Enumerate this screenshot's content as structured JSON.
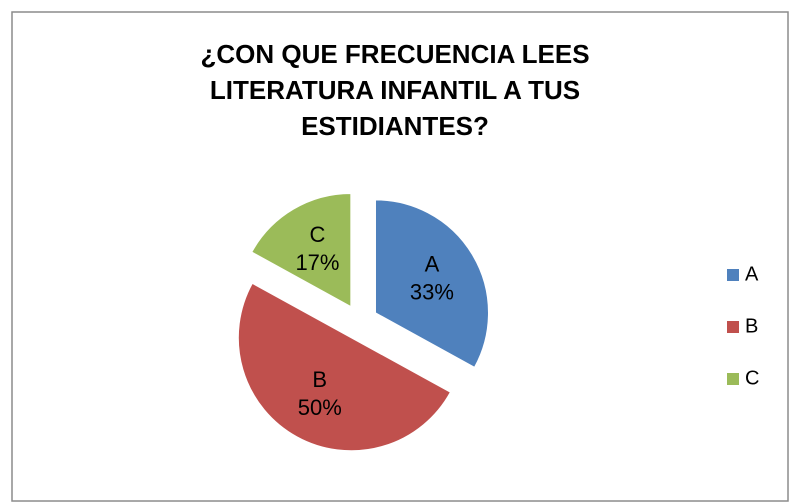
{
  "chart_data": {
    "type": "pie",
    "title": "¿CON QUE FRECUENCIA LEES LITERATURA INFANTIL A TUS ESTIDIANTES?",
    "categories": [
      "A",
      "B",
      "C"
    ],
    "values": [
      33,
      50,
      17
    ],
    "value_labels": [
      "33%",
      "50%",
      "17%"
    ],
    "colors": [
      "#4f81bd",
      "#c0504d",
      "#9bbb59"
    ],
    "legend": "right"
  }
}
